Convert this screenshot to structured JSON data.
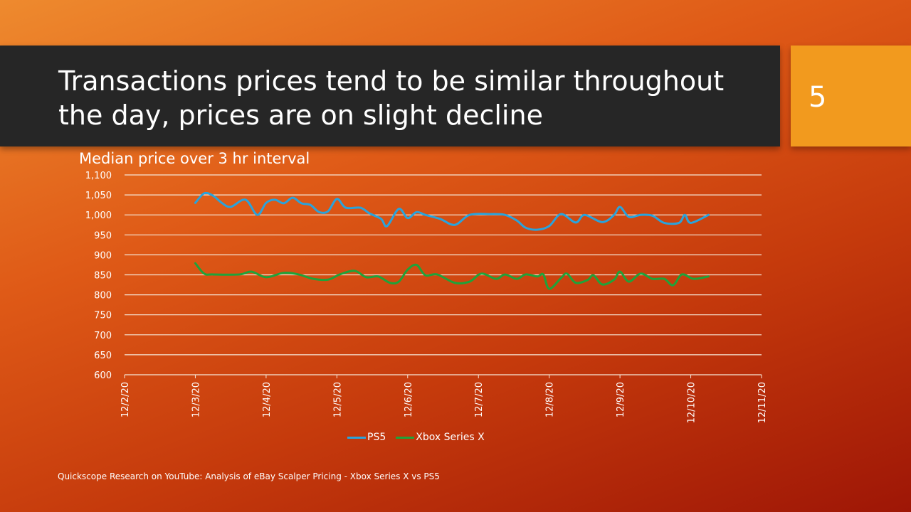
{
  "slide": {
    "title": "Transactions prices tend to be similar throughout the day, prices are on slight decline",
    "number": "5",
    "source": "Quickscope Research on YouTube: Analysis of eBay Scalper Pricing - Xbox Series X vs PS5"
  },
  "chart_data": {
    "type": "line",
    "title": "Median price over 3 hr interval",
    "xlabel": "",
    "ylabel": "",
    "ylim": [
      600,
      1100
    ],
    "yticks": [
      "600",
      "650",
      "700",
      "750",
      "800",
      "850",
      "900",
      "950",
      "1,000",
      "1,050",
      "1,100"
    ],
    "xticks": [
      "12/2/20",
      "12/3/20",
      "12/4/20",
      "12/5/20",
      "12/6/20",
      "12/7/20",
      "12/8/20",
      "12/9/20",
      "12/10/20",
      "12/11/20"
    ],
    "xlim": [
      "12/2/20",
      "12/11/20"
    ],
    "grid": true,
    "legend": "bottom",
    "series": [
      {
        "name": "PS5",
        "color": "#29a3dc",
        "points": [
          [
            "12/3/20 00:00",
            1030
          ],
          [
            "12/3/20 03:00",
            1054
          ],
          [
            "12/3/20 06:00",
            1048
          ],
          [
            "12/3/20 09:00",
            1030
          ],
          [
            "12/3/20 12:00",
            1020
          ],
          [
            "12/3/20 17:00",
            1038
          ],
          [
            "12/3/20 21:00",
            1000
          ],
          [
            "12/4/20 00:00",
            1030
          ],
          [
            "12/4/20 03:00",
            1038
          ],
          [
            "12/4/20 06:00",
            1029
          ],
          [
            "12/4/20 09:00",
            1043
          ],
          [
            "12/4/20 12:00",
            1029
          ],
          [
            "12/4/20 15:00",
            1025
          ],
          [
            "12/4/20 18:00",
            1007
          ],
          [
            "12/4/20 21:00",
            1009
          ],
          [
            "12/5/20 00:00",
            1040
          ],
          [
            "12/5/20 03:00",
            1018
          ],
          [
            "12/5/20 08:00",
            1018
          ],
          [
            "12/5/20 11:00",
            1004
          ],
          [
            "12/5/20 15:00",
            990
          ],
          [
            "12/5/20 17:00",
            972
          ],
          [
            "12/5/20 21:00",
            1015
          ],
          [
            "12/6/20 00:00",
            992
          ],
          [
            "12/6/20 03:00",
            1007
          ],
          [
            "12/6/20 06:00",
            1000
          ],
          [
            "12/6/20 11:00",
            990
          ],
          [
            "12/6/20 16:00",
            975
          ],
          [
            "12/6/20 21:00",
            1000
          ],
          [
            "12/7/20 04:00",
            1002
          ],
          [
            "12/7/20 09:00",
            1000
          ],
          [
            "12/7/20 13:00",
            986
          ],
          [
            "12/7/20 16:00",
            968
          ],
          [
            "12/7/20 20:00",
            963
          ],
          [
            "12/8/20 00:00",
            972
          ],
          [
            "12/8/20 04:00",
            1002
          ],
          [
            "12/8/20 09:00",
            981
          ],
          [
            "12/8/20 12:00",
            1000
          ],
          [
            "12/8/20 18:00",
            982
          ],
          [
            "12/8/20 22:00",
            1000
          ],
          [
            "12/9/20 00:00",
            1020
          ],
          [
            "12/9/20 03:00",
            995
          ],
          [
            "12/9/20 07:00",
            1000
          ],
          [
            "12/9/20 11:00",
            998
          ],
          [
            "12/9/20 15:00",
            980
          ],
          [
            "12/9/20 20:00",
            980
          ],
          [
            "12/9/20 22:00",
            1000
          ],
          [
            "12/10/20 00:00",
            980
          ],
          [
            "12/10/20 06:00",
            1000
          ]
        ]
      },
      {
        "name": "Xbox Series X",
        "color": "#1fa33a",
        "points": [
          [
            "12/3/20 00:00",
            879
          ],
          [
            "12/3/20 03:00",
            853
          ],
          [
            "12/3/20 06:00",
            851
          ],
          [
            "12/3/20 15:00",
            851
          ],
          [
            "12/3/20 19:00",
            858
          ],
          [
            "12/4/20 00:00",
            844
          ],
          [
            "12/4/20 06:00",
            855
          ],
          [
            "12/4/20 11:00",
            851
          ],
          [
            "12/4/20 16:00",
            840
          ],
          [
            "12/4/20 21:00",
            838
          ],
          [
            "12/5/20 01:00",
            851
          ],
          [
            "12/5/20 06:00",
            860
          ],
          [
            "12/5/20 10:00",
            844
          ],
          [
            "12/5/20 14:00",
            846
          ],
          [
            "12/5/20 18:00",
            830
          ],
          [
            "12/5/20 21:00",
            833
          ],
          [
            "12/6/20 00:00",
            863
          ],
          [
            "12/6/20 03:00",
            875
          ],
          [
            "12/6/20 06:00",
            849
          ],
          [
            "12/6/20 10:00",
            851
          ],
          [
            "12/6/20 16:00",
            830
          ],
          [
            "12/6/20 21:00",
            833
          ],
          [
            "12/7/20 01:00",
            853
          ],
          [
            "12/7/20 06:00",
            840
          ],
          [
            "12/7/20 09:00",
            851
          ],
          [
            "12/7/20 13:00",
            840
          ],
          [
            "12/7/20 16:00",
            851
          ],
          [
            "12/7/20 20:00",
            846
          ],
          [
            "12/7/20 22:00",
            851
          ],
          [
            "12/8/20 00:00",
            815
          ],
          [
            "12/8/20 04:00",
            842
          ],
          [
            "12/8/20 06:00",
            853
          ],
          [
            "12/8/20 09:00",
            830
          ],
          [
            "12/8/20 13:00",
            837
          ],
          [
            "12/8/20 15:00",
            849
          ],
          [
            "12/8/20 18:00",
            826
          ],
          [
            "12/8/20 22:00",
            838
          ],
          [
            "12/9/20 00:00",
            858
          ],
          [
            "12/9/20 03:00",
            833
          ],
          [
            "12/9/20 07:00",
            853
          ],
          [
            "12/9/20 11:00",
            840
          ],
          [
            "12/9/20 15:00",
            840
          ],
          [
            "12/9/20 18:00",
            824
          ],
          [
            "12/9/20 21:00",
            851
          ],
          [
            "12/10/20 01:00",
            840
          ],
          [
            "12/10/20 06:00",
            846
          ]
        ]
      }
    ]
  }
}
